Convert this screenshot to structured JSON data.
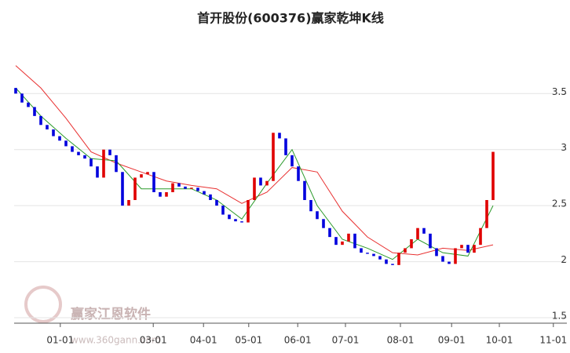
{
  "chart_data": {
    "type": "candlestick",
    "title": "首开股份(600376)赢家乾坤K线",
    "watermark": {
      "name": "赢家江恩软件",
      "url": "www.360gann.com"
    },
    "up_color": "#e00000",
    "down_color": "#0000dd",
    "open": [
      3.55,
      3.5,
      3.42,
      3.38,
      3.3,
      3.22,
      3.18,
      3.12,
      3.08,
      3.03,
      2.98,
      2.95,
      2.92,
      2.85,
      2.75,
      3.0,
      2.95,
      2.8,
      2.5,
      2.55,
      2.75,
      2.78,
      2.8,
      2.62,
      2.58,
      2.62,
      2.7,
      2.67,
      2.65,
      2.66,
      2.63,
      2.6,
      2.55,
      2.5,
      2.42,
      2.38,
      2.36,
      2.35,
      2.55,
      2.75,
      2.68,
      2.72,
      3.15,
      3.1,
      2.95,
      2.85,
      2.72,
      2.55,
      2.45,
      2.38,
      2.3,
      2.22,
      2.15,
      2.18,
      2.25,
      2.12,
      2.08,
      2.07,
      2.05,
      2.02,
      1.98,
      1.97,
      2.08,
      2.12,
      2.2,
      2.3,
      2.25,
      2.12,
      2.05,
      2.0,
      1.98,
      2.12,
      2.15,
      2.08,
      2.15,
      2.3,
      2.55
    ],
    "close": [
      3.5,
      3.42,
      3.38,
      3.3,
      3.22,
      3.18,
      3.12,
      3.08,
      3.03,
      2.98,
      2.95,
      2.92,
      2.85,
      2.75,
      3.0,
      2.95,
      2.8,
      2.5,
      2.55,
      2.75,
      2.78,
      2.8,
      2.62,
      2.58,
      2.62,
      2.7,
      2.67,
      2.65,
      2.66,
      2.63,
      2.6,
      2.55,
      2.5,
      2.42,
      2.38,
      2.36,
      2.35,
      2.55,
      2.75,
      2.68,
      2.72,
      3.15,
      3.1,
      2.95,
      2.85,
      2.72,
      2.55,
      2.45,
      2.38,
      2.3,
      2.22,
      2.15,
      2.18,
      2.25,
      2.12,
      2.08,
      2.07,
      2.05,
      2.02,
      1.98,
      1.97,
      2.08,
      2.12,
      2.2,
      2.3,
      2.25,
      2.12,
      2.05,
      2.0,
      1.98,
      2.12,
      2.15,
      2.08,
      2.15,
      2.3,
      2.55,
      2.98
    ],
    "lines": [
      {
        "color": "#e83030",
        "x": [
          0,
          4,
          8,
          12,
          16,
          20,
          24,
          28,
          32,
          36,
          40,
          44,
          48,
          52,
          56,
          60,
          64,
          68,
          72,
          76
        ],
        "values": [
          3.75,
          3.55,
          3.28,
          2.98,
          2.88,
          2.8,
          2.72,
          2.68,
          2.65,
          2.52,
          2.62,
          2.84,
          2.8,
          2.45,
          2.22,
          2.08,
          2.06,
          2.12,
          2.1,
          2.15
        ]
      },
      {
        "color": "#2a9a2a",
        "x": [
          0,
          4,
          8,
          12,
          16,
          20,
          24,
          28,
          32,
          36,
          40,
          44,
          48,
          52,
          56,
          60,
          64,
          68,
          72,
          76
        ],
        "values": [
          3.55,
          3.3,
          3.1,
          2.92,
          2.9,
          2.65,
          2.65,
          2.65,
          2.55,
          2.38,
          2.7,
          3.0,
          2.5,
          2.2,
          2.12,
          2.02,
          2.2,
          2.08,
          2.05,
          2.5
        ]
      }
    ],
    "xlim": [
      -0.25,
      87.75
    ],
    "ylim": [
      1.5,
      3.95
    ],
    "yticks": [
      1.5,
      2,
      2.5,
      3,
      3.5
    ],
    "xticks": [
      {
        "value": 7.1,
        "label": "01-01"
      },
      {
        "value": 21.9,
        "label": "03-01"
      },
      {
        "value": 29.9,
        "label": "04-01"
      },
      {
        "value": 37.1,
        "label": "05-01"
      },
      {
        "value": 44.9,
        "label": "06-01"
      },
      {
        "value": 52.5,
        "label": "07-01"
      },
      {
        "value": 61.25,
        "label": "08-01"
      },
      {
        "value": 69.4,
        "label": "09-01"
      },
      {
        "value": 77,
        "label": "10-01"
      },
      {
        "value": 85.6,
        "label": "11-01"
      }
    ],
    "grid": true
  }
}
